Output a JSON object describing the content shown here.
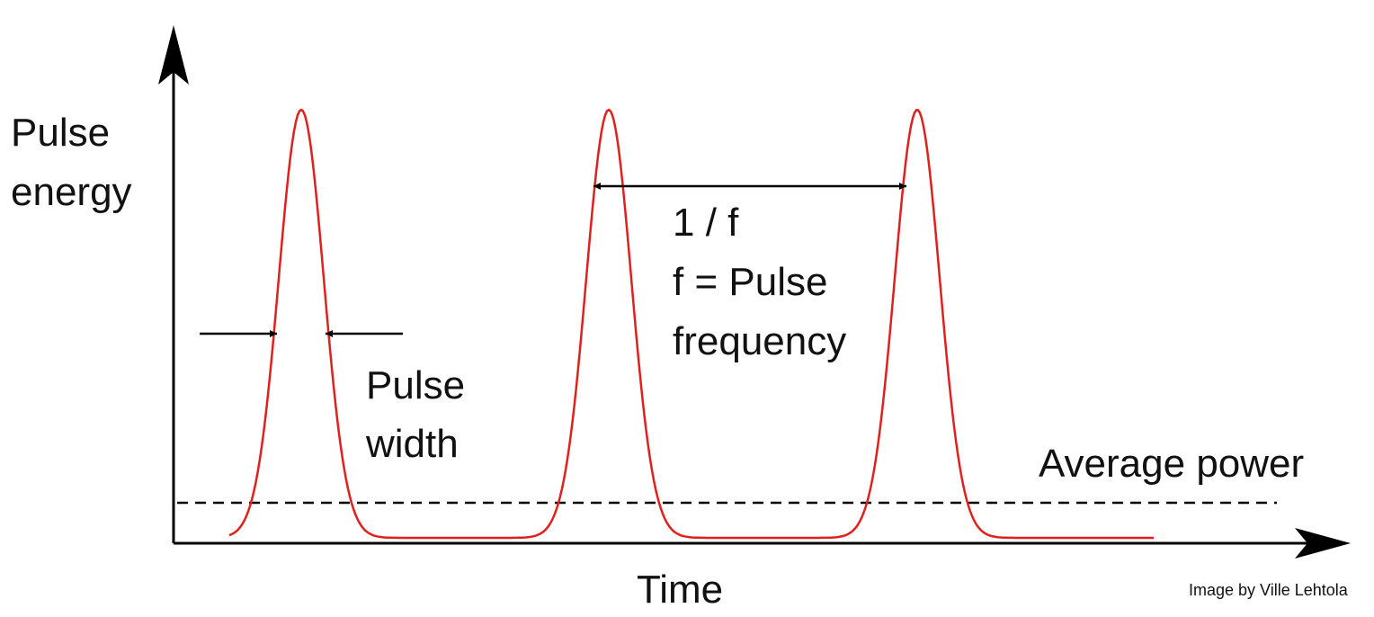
{
  "y_axis_label": [
    "Pulse",
    "energy"
  ],
  "x_axis_label": "Time",
  "period_label": [
    "1 / f",
    "f = Pulse",
    "frequency"
  ],
  "width_label": [
    "Pulse",
    "width"
  ],
  "average_label": "Average power",
  "credit": "Image by Ville Lehtola"
}
